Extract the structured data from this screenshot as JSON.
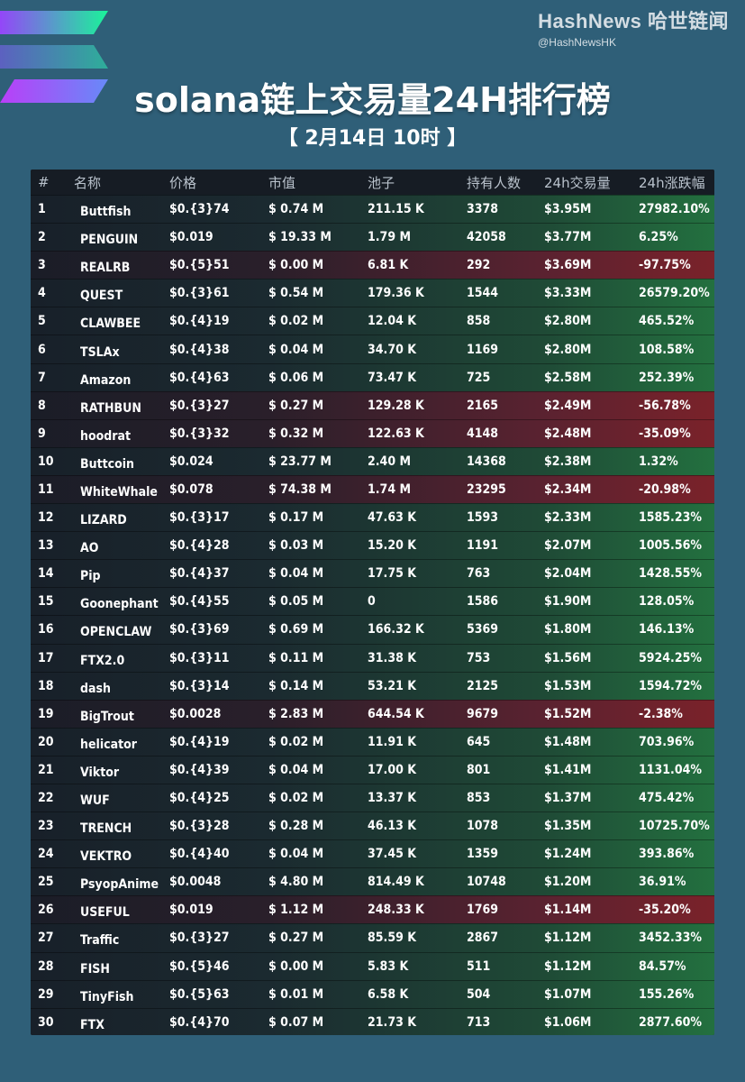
{
  "brand": {
    "name": "HashNews 哈世链闻",
    "handle": "@HashNewsHK"
  },
  "header": {
    "title": "solana链上交易量24H排行榜",
    "subtitle": "【 2月14日 10时 】"
  },
  "columns": [
    "#",
    "名称",
    "价格",
    "市值",
    "池子",
    "持有人数",
    "24h交易量",
    "24h涨跌幅"
  ],
  "rows": [
    {
      "rank": "1",
      "name": "Buttfish",
      "price": "$0.{3}74",
      "mcap": "$ 0.74 M",
      "pool": "211.15 K",
      "holders": "3378",
      "volume": "$3.95M",
      "change": "27982.10%",
      "dir": "up"
    },
    {
      "rank": "2",
      "name": "PENGUIN",
      "price": "$0.019",
      "mcap": "$ 19.33 M",
      "pool": "1.79 M",
      "holders": "42058",
      "volume": "$3.77M",
      "change": "6.25%",
      "dir": "up"
    },
    {
      "rank": "3",
      "name": "REALRB",
      "price": "$0.{5}51",
      "mcap": "$ 0.00 M",
      "pool": "6.81 K",
      "holders": "292",
      "volume": "$3.69M",
      "change": "-97.75%",
      "dir": "down"
    },
    {
      "rank": "4",
      "name": "QUEST",
      "price": "$0.{3}61",
      "mcap": "$ 0.54 M",
      "pool": "179.36 K",
      "holders": "1544",
      "volume": "$3.33M",
      "change": "26579.20%",
      "dir": "up"
    },
    {
      "rank": "5",
      "name": "CLAWBEE",
      "price": "$0.{4}19",
      "mcap": "$ 0.02 M",
      "pool": "12.04 K",
      "holders": "858",
      "volume": "$2.80M",
      "change": "465.52%",
      "dir": "up"
    },
    {
      "rank": "6",
      "name": "TSLAx",
      "price": "$0.{4}38",
      "mcap": "$ 0.04 M",
      "pool": "34.70 K",
      "holders": "1169",
      "volume": "$2.80M",
      "change": "108.58%",
      "dir": "up"
    },
    {
      "rank": "7",
      "name": "Amazon",
      "price": "$0.{4}63",
      "mcap": "$ 0.06 M",
      "pool": "73.47 K",
      "holders": "725",
      "volume": "$2.58M",
      "change": "252.39%",
      "dir": "up"
    },
    {
      "rank": "8",
      "name": "RATHBUN",
      "price": "$0.{3}27",
      "mcap": "$ 0.27 M",
      "pool": "129.28 K",
      "holders": "2165",
      "volume": "$2.49M",
      "change": "-56.78%",
      "dir": "down"
    },
    {
      "rank": "9",
      "name": "hoodrat",
      "price": "$0.{3}32",
      "mcap": "$ 0.32 M",
      "pool": "122.63 K",
      "holders": "4148",
      "volume": "$2.48M",
      "change": "-35.09%",
      "dir": "down"
    },
    {
      "rank": "10",
      "name": "Buttcoin",
      "price": "$0.024",
      "mcap": "$ 23.77 M",
      "pool": "2.40 M",
      "holders": "14368",
      "volume": "$2.38M",
      "change": "1.32%",
      "dir": "up"
    },
    {
      "rank": "11",
      "name": "WhiteWhale",
      "price": "$0.078",
      "mcap": "$ 74.38 M",
      "pool": "1.74 M",
      "holders": "23295",
      "volume": "$2.34M",
      "change": "-20.98%",
      "dir": "down"
    },
    {
      "rank": "12",
      "name": "LIZARD",
      "price": "$0.{3}17",
      "mcap": "$ 0.17 M",
      "pool": "47.63 K",
      "holders": "1593",
      "volume": "$2.33M",
      "change": "1585.23%",
      "dir": "up"
    },
    {
      "rank": "13",
      "name": "AO",
      "price": "$0.{4}28",
      "mcap": "$ 0.03 M",
      "pool": "15.20 K",
      "holders": "1191",
      "volume": "$2.07M",
      "change": "1005.56%",
      "dir": "up"
    },
    {
      "rank": "14",
      "name": "Pip",
      "price": "$0.{4}37",
      "mcap": "$ 0.04 M",
      "pool": "17.75 K",
      "holders": "763",
      "volume": "$2.04M",
      "change": "1428.55%",
      "dir": "up"
    },
    {
      "rank": "15",
      "name": "Goonephant",
      "price": "$0.{4}55",
      "mcap": "$ 0.05 M",
      "pool": "0",
      "holders": "1586",
      "volume": "$1.90M",
      "change": "128.05%",
      "dir": "up"
    },
    {
      "rank": "16",
      "name": "OPENCLAW",
      "price": "$0.{3}69",
      "mcap": "$ 0.69 M",
      "pool": "166.32 K",
      "holders": "5369",
      "volume": "$1.80M",
      "change": "146.13%",
      "dir": "up"
    },
    {
      "rank": "17",
      "name": "FTX2.0",
      "price": "$0.{3}11",
      "mcap": "$ 0.11 M",
      "pool": "31.38 K",
      "holders": "753",
      "volume": "$1.56M",
      "change": "5924.25%",
      "dir": "up"
    },
    {
      "rank": "18",
      "name": "dash",
      "price": "$0.{3}14",
      "mcap": "$ 0.14 M",
      "pool": "53.21 K",
      "holders": "2125",
      "volume": "$1.53M",
      "change": "1594.72%",
      "dir": "up"
    },
    {
      "rank": "19",
      "name": "BigTrout",
      "price": "$0.0028",
      "mcap": "$ 2.83 M",
      "pool": "644.54 K",
      "holders": "9679",
      "volume": "$1.52M",
      "change": "-2.38%",
      "dir": "down"
    },
    {
      "rank": "20",
      "name": "helicator",
      "price": "$0.{4}19",
      "mcap": "$ 0.02 M",
      "pool": "11.91 K",
      "holders": "645",
      "volume": "$1.48M",
      "change": "703.96%",
      "dir": "up"
    },
    {
      "rank": "21",
      "name": "Viktor",
      "price": "$0.{4}39",
      "mcap": "$ 0.04 M",
      "pool": "17.00 K",
      "holders": "801",
      "volume": "$1.41M",
      "change": "1131.04%",
      "dir": "up"
    },
    {
      "rank": "22",
      "name": "WUF",
      "price": "$0.{4}25",
      "mcap": "$ 0.02 M",
      "pool": "13.37 K",
      "holders": "853",
      "volume": "$1.37M",
      "change": "475.42%",
      "dir": "up"
    },
    {
      "rank": "23",
      "name": "TRENCH",
      "price": "$0.{3}28",
      "mcap": "$ 0.28 M",
      "pool": "46.13 K",
      "holders": "1078",
      "volume": "$1.35M",
      "change": "10725.70%",
      "dir": "up"
    },
    {
      "rank": "24",
      "name": "VEKTRO",
      "price": "$0.{4}40",
      "mcap": "$ 0.04 M",
      "pool": "37.45 K",
      "holders": "1359",
      "volume": "$1.24M",
      "change": "393.86%",
      "dir": "up"
    },
    {
      "rank": "25",
      "name": "PsyopAnime",
      "price": "$0.0048",
      "mcap": "$ 4.80 M",
      "pool": "814.49 K",
      "holders": "10748",
      "volume": "$1.20M",
      "change": "36.91%",
      "dir": "up"
    },
    {
      "rank": "26",
      "name": "USEFUL",
      "price": "$0.019",
      "mcap": "$ 1.12 M",
      "pool": "248.33 K",
      "holders": "1769",
      "volume": "$1.14M",
      "change": "-35.20%",
      "dir": "down"
    },
    {
      "rank": "27",
      "name": "Traffic",
      "price": "$0.{3}27",
      "mcap": "$ 0.27 M",
      "pool": "85.59 K",
      "holders": "2867",
      "volume": "$1.12M",
      "change": "3452.33%",
      "dir": "up"
    },
    {
      "rank": "28",
      "name": "FISH",
      "price": "$0.{5}46",
      "mcap": "$ 0.00 M",
      "pool": "5.83 K",
      "holders": "511",
      "volume": "$1.12M",
      "change": "84.57%",
      "dir": "up"
    },
    {
      "rank": "29",
      "name": "TinyFish",
      "price": "$0.{5}63",
      "mcap": "$ 0.01 M",
      "pool": "6.58 K",
      "holders": "504",
      "volume": "$1.07M",
      "change": "155.26%",
      "dir": "up"
    },
    {
      "rank": "30",
      "name": "FTX",
      "price": "$0.{4}70",
      "mcap": "$ 0.07 M",
      "pool": "21.73 K",
      "holders": "713",
      "volume": "$1.06M",
      "change": "2877.60%",
      "dir": "up"
    }
  ],
  "colors": {
    "up": "#23703f",
    "down": "#7a222a",
    "background": "#2f5f78"
  },
  "icons": {
    "logo": "solana-logo-icon"
  }
}
